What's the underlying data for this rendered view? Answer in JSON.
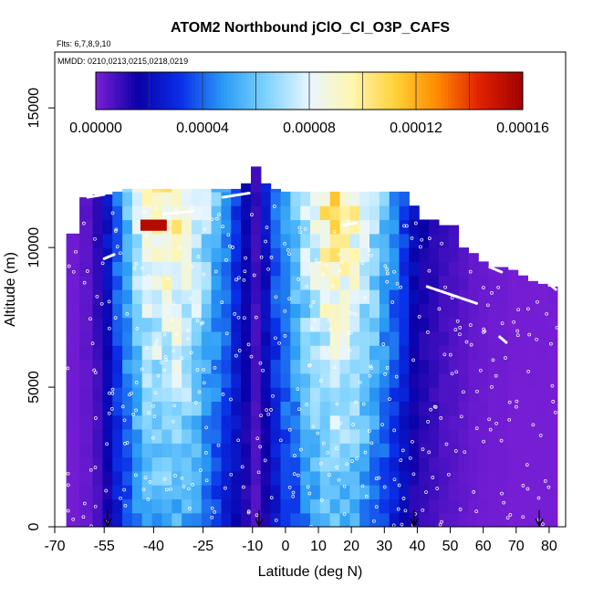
{
  "chart_data": {
    "type": "heatmap",
    "title": "ATOM2 Northbound jClO_Cl_O3P_CAFS",
    "flights_label": "Flts: 6,7,8,9,10",
    "dates_label": "MMDD: 0210,0213,0215,0218,0219",
    "xlabel": "Latitude (deg N)",
    "ylabel": "Altitude (m)",
    "xlim": [
      -70,
      85
    ],
    "ylim": [
      0,
      17000
    ],
    "x_ticks": [
      -70,
      -55,
      -40,
      -25,
      -10,
      0,
      10,
      20,
      30,
      40,
      50,
      60,
      70,
      80
    ],
    "y_ticks": [
      0,
      5000,
      10000,
      15000
    ],
    "colorbar": {
      "range": [
        0,
        0.00016
      ],
      "tick_labels": [
        "0.00000",
        "0.00004",
        "0.00008",
        "0.00012",
        "0.00016"
      ],
      "tick_values": [
        0,
        4e-05,
        8e-05,
        0.00012,
        0.00016
      ],
      "colors": [
        "#7a1fd6",
        "#0a00a8",
        "#0a2fe8",
        "#2a9cf5",
        "#7fd3ff",
        "#e8f6ff",
        "#fff6b0",
        "#ffd23a",
        "#ff8a00",
        "#e02000",
        "#a00000"
      ]
    },
    "lat_columns": [
      {
        "lat": -65,
        "top": 10500,
        "value": 2e-06
      },
      {
        "lat": -60,
        "top": 11800,
        "value": 5e-06
      },
      {
        "lat": -57,
        "top": 11900,
        "value": 1.2e-05
      },
      {
        "lat": -54,
        "top": 11900,
        "value": 2.5e-05
      },
      {
        "lat": -51,
        "top": 12000,
        "value": 4.5e-05
      },
      {
        "lat": -48,
        "top": 12100,
        "value": 6.2e-05
      },
      {
        "lat": -45,
        "top": 12100,
        "value": 7.8e-05
      },
      {
        "lat": -42,
        "top": 12100,
        "value": 8.8e-05
      },
      {
        "lat": -39,
        "top": 12100,
        "value": 9.5e-05
      },
      {
        "lat": -36,
        "top": 12100,
        "value": 0.0001
      },
      {
        "lat": -33,
        "top": 12100,
        "value": 9.8e-05
      },
      {
        "lat": -30,
        "top": 12100,
        "value": 9.2e-05
      },
      {
        "lat": -27,
        "top": 12100,
        "value": 8.4e-05
      },
      {
        "lat": -24,
        "top": 12100,
        "value": 7.2e-05
      },
      {
        "lat": -21,
        "top": 12100,
        "value": 6e-05
      },
      {
        "lat": -18,
        "top": 12100,
        "value": 4.8e-05
      },
      {
        "lat": -15,
        "top": 12100,
        "value": 3.5e-05
      },
      {
        "lat": -12,
        "top": 12300,
        "value": 2e-05
      },
      {
        "lat": -9,
        "top": 12900,
        "value": 1e-05
      },
      {
        "lat": -6,
        "top": 12300,
        "value": 2.5e-05
      },
      {
        "lat": -3,
        "top": 12100,
        "value": 4.2e-05
      },
      {
        "lat": 0,
        "top": 12000,
        "value": 5.5e-05
      },
      {
        "lat": 3,
        "top": 12000,
        "value": 6.5e-05
      },
      {
        "lat": 6,
        "top": 12000,
        "value": 7.8e-05
      },
      {
        "lat": 9,
        "top": 12000,
        "value": 9e-05
      },
      {
        "lat": 12,
        "top": 12000,
        "value": 0.0001
      },
      {
        "lat": 15,
        "top": 12000,
        "value": 0.000104
      },
      {
        "lat": 18,
        "top": 12000,
        "value": 0.0001
      },
      {
        "lat": 21,
        "top": 12000,
        "value": 9.4e-05
      },
      {
        "lat": 24,
        "top": 12000,
        "value": 8.5e-05
      },
      {
        "lat": 27,
        "top": 12000,
        "value": 7.2e-05
      },
      {
        "lat": 30,
        "top": 12000,
        "value": 6e-05
      },
      {
        "lat": 33,
        "top": 12000,
        "value": 4.8e-05
      },
      {
        "lat": 36,
        "top": 12000,
        "value": 3.5e-05
      },
      {
        "lat": 39,
        "top": 11500,
        "value": 2.2e-05
      },
      {
        "lat": 42,
        "top": 11000,
        "value": 1.6e-05
      },
      {
        "lat": 45,
        "top": 11000,
        "value": 1.3e-05
      },
      {
        "lat": 48,
        "top": 10800,
        "value": 1e-05
      },
      {
        "lat": 51,
        "top": 10800,
        "value": 8e-06
      },
      {
        "lat": 54,
        "top": 10000,
        "value": 6e-06
      },
      {
        "lat": 57,
        "top": 9800,
        "value": 4e-06
      },
      {
        "lat": 60,
        "top": 9500,
        "value": 3e-06
      },
      {
        "lat": 63,
        "top": 9300,
        "value": 2e-06
      },
      {
        "lat": 66,
        "top": 9300,
        "value": 2e-06
      },
      {
        "lat": 69,
        "top": 9200,
        "value": 1e-06
      },
      {
        "lat": 72,
        "top": 9000,
        "value": 1e-06
      },
      {
        "lat": 75,
        "top": 8800,
        "value": 1e-06
      },
      {
        "lat": 78,
        "top": 8700,
        "value": 1e-06
      },
      {
        "lat": 81,
        "top": 8600,
        "value": 1e-06
      }
    ],
    "hotspot": {
      "lat_range": [
        -44,
        -36
      ],
      "alt_range": [
        10600,
        11000
      ],
      "value": 0.000155
    },
    "flight_tracks": [
      {
        "lat_range": [
          -60,
          -55
        ],
        "alt_range": [
          11800,
          11900
        ]
      },
      {
        "lat_range": [
          -55,
          -52
        ],
        "alt_range": [
          9600,
          9750
        ]
      },
      {
        "lat_range": [
          -37,
          -28
        ],
        "alt_range": [
          11200,
          11300
        ]
      },
      {
        "lat_range": [
          -19,
          -11
        ],
        "alt_range": [
          11800,
          11950
        ]
      },
      {
        "lat_range": [
          18,
          22
        ],
        "alt_range": [
          10800,
          10900
        ]
      },
      {
        "lat_range": [
          43,
          58
        ],
        "alt_range": [
          8600,
          8000
        ]
      },
      {
        "lat_range": [
          62,
          66
        ],
        "alt_range": [
          9300,
          9100
        ]
      },
      {
        "lat_range": [
          65,
          67
        ],
        "alt_range": [
          6800,
          6600
        ]
      },
      {
        "lat_range": [
          80,
          82
        ],
        "alt_range": [
          8700,
          8500
        ]
      }
    ],
    "profile_markers_lat": [
      -54,
      -8,
      39,
      77
    ]
  }
}
